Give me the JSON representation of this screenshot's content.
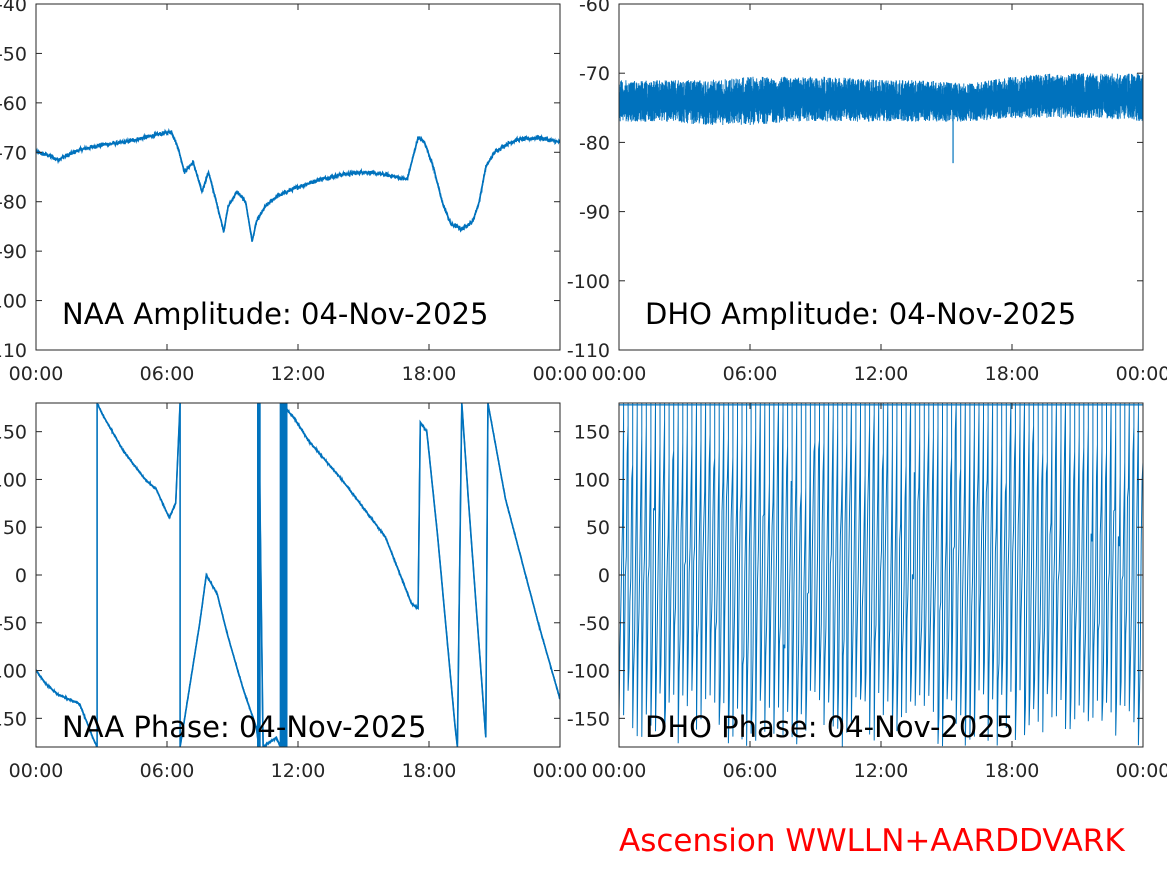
{
  "footer": {
    "text": "Ascension WWLLN+AARDDVARK",
    "color": "#ff0000"
  },
  "series_color": "#0072bd",
  "chart_data": [
    {
      "type": "line",
      "title": "NAA Amplitude: 04-Nov-2025",
      "xlabel": "",
      "ylabel": "",
      "x_unit": "hours",
      "xlim": [
        0,
        24
      ],
      "ylim": [
        -110,
        -40
      ],
      "x_ticks": [
        "00:00",
        "06:00",
        "12:00",
        "18:00",
        "00:00"
      ],
      "y_ticks": [
        "-40",
        "-50",
        "-60",
        "-70",
        "-80",
        "-90",
        "-100",
        "-110"
      ],
      "grid": false,
      "series": [
        {
          "x": [
            0,
            0.5,
            1,
            2,
            3,
            4,
            5,
            6,
            6.2,
            6.5,
            6.8,
            7.2,
            7.6,
            7.9,
            8.2,
            8.6,
            8.8,
            9.2,
            9.6,
            9.9,
            10.1,
            10.5,
            11,
            12,
            13,
            14,
            15,
            16,
            17,
            17.5,
            17.8,
            18.2,
            18.6,
            19,
            19.5,
            20,
            20.3,
            20.6,
            21,
            21.5,
            22,
            23,
            24
          ],
          "y": [
            -70,
            -70.5,
            -71.5,
            -69.5,
            -68.5,
            -68,
            -67,
            -66,
            -65.8,
            -69,
            -74,
            -72,
            -78,
            -74,
            -79,
            -86,
            -81,
            -78,
            -80,
            -88,
            -84,
            -81,
            -79,
            -77,
            -75.5,
            -74.5,
            -74,
            -74.5,
            -75.5,
            -67,
            -68,
            -73,
            -80,
            -84.5,
            -85.5,
            -84,
            -80,
            -73,
            -70,
            -68.5,
            -67.5,
            -67,
            -68
          ]
        }
      ]
    },
    {
      "type": "line",
      "title": "DHO Amplitude: 04-Nov-2025",
      "xlabel": "",
      "ylabel": "",
      "x_unit": "hours",
      "xlim": [
        0,
        24
      ],
      "ylim": [
        -110,
        -60
      ],
      "x_ticks": [
        "00:00",
        "06:00",
        "12:00",
        "18:00",
        "00:00"
      ],
      "y_ticks": [
        "-60",
        "-70",
        "-80",
        "-90",
        "-100",
        "-110"
      ],
      "grid": false,
      "envelope": {
        "x": [
          0,
          2,
          4,
          6,
          8,
          10,
          12,
          14,
          16,
          18,
          20,
          22,
          24
        ],
        "upper": [
          -71,
          -71,
          -71,
          -70.5,
          -70.5,
          -70.5,
          -71,
          -71,
          -71.5,
          -70.5,
          -70,
          -70,
          -70
        ],
        "lower": [
          -77,
          -77,
          -77.5,
          -77.5,
          -77,
          -77,
          -77,
          -77,
          -77,
          -76.5,
          -76.5,
          -76.5,
          -77
        ]
      },
      "spike": {
        "x": 15.3,
        "y": -83
      }
    },
    {
      "type": "line",
      "title": "NAA Phase: 04-Nov-2025",
      "xlabel": "",
      "ylabel": "",
      "x_unit": "hours",
      "xlim": [
        0,
        24
      ],
      "ylim": [
        -180,
        180
      ],
      "x_ticks": [
        "00:00",
        "06:00",
        "12:00",
        "18:00",
        "00:00"
      ],
      "y_ticks": [
        "150",
        "100",
        "50",
        "0",
        "-50",
        "-100",
        "-150"
      ],
      "grid": false,
      "series": [
        {
          "x": [
            0,
            0.5,
            1,
            2,
            2.6,
            2.8,
            2.8,
            3,
            4,
            5,
            5.5,
            6.1,
            6.4,
            6.6,
            6.6,
            7.5,
            7.8,
            8.3,
            8.8,
            9.5,
            10.1,
            10.2,
            10.2,
            10.4,
            11,
            11.2,
            11.2,
            11.8,
            12.5,
            14,
            16,
            17.2,
            17.5,
            17.6,
            17.9,
            18.4,
            19.2,
            19.3,
            19.5,
            19.8,
            20.6,
            20.7,
            21.5,
            23,
            24
          ],
          "y": [
            -100,
            -115,
            -125,
            -135,
            -170,
            -180,
            180,
            170,
            130,
            100,
            90,
            60,
            75,
            180,
            -180,
            -50,
            0,
            -20,
            -65,
            -120,
            -160,
            -180,
            180,
            -180,
            -170,
            -180,
            180,
            165,
            140,
            100,
            40,
            -30,
            -35,
            160,
            150,
            40,
            -160,
            -180,
            180,
            80,
            -170,
            180,
            80,
            -50,
            -130
          ]
        }
      ],
      "annotations": []
    },
    {
      "type": "line",
      "title": "DHO Phase: 04-Nov-2025",
      "xlabel": "",
      "ylabel": "",
      "x_unit": "hours",
      "xlim": [
        0,
        24
      ],
      "ylim": [
        -180,
        180
      ],
      "x_ticks": [
        "00:00",
        "06:00",
        "12:00",
        "18:00",
        "00:00"
      ],
      "y_ticks": [
        "150",
        "100",
        "50",
        "0",
        "-50",
        "-100",
        "-150"
      ],
      "grid": false,
      "wrap_cycles": 115
    }
  ]
}
